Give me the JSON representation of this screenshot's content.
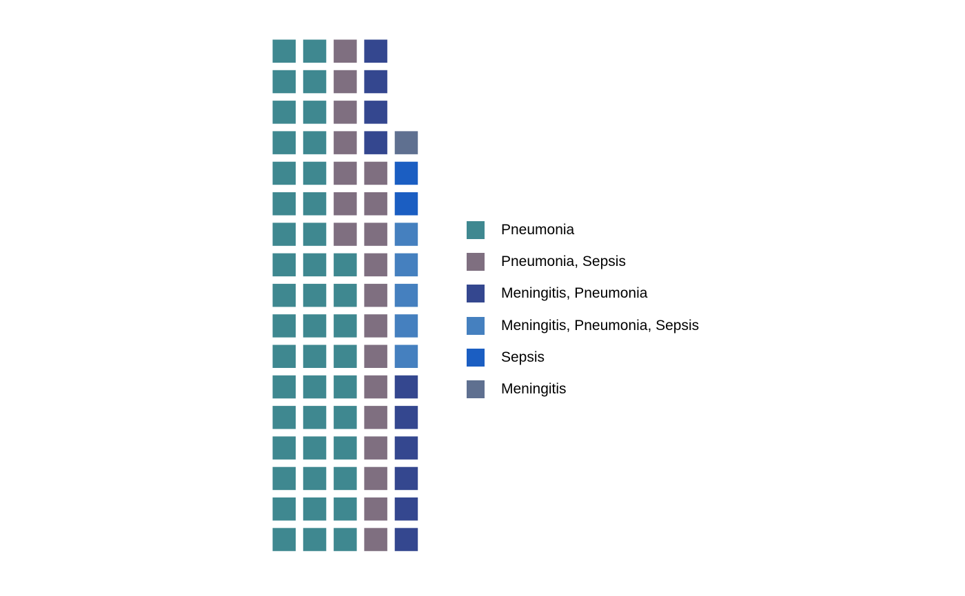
{
  "chart_data": {
    "type": "waffle",
    "title": "",
    "xlabel": "",
    "ylabel": "",
    "grid": false,
    "legend_position": "right",
    "categories": [
      "Pneumonia",
      "Pneumonia, Sepsis",
      "Meningitis, Pneumonia",
      "Meningitis, Pneumonia, Sepsis",
      "Sepsis",
      "Meningitis"
    ],
    "values": [
      44,
      20,
      10,
      5,
      2,
      1
    ],
    "colors": [
      "#3F8890",
      "#7F6F80",
      "#34478F",
      "#4580BF",
      "#1B5EC2",
      "#5F7090"
    ],
    "grid_columns": 5,
    "grid_rows": 17,
    "fill_order": "column-major-from-bottom"
  }
}
